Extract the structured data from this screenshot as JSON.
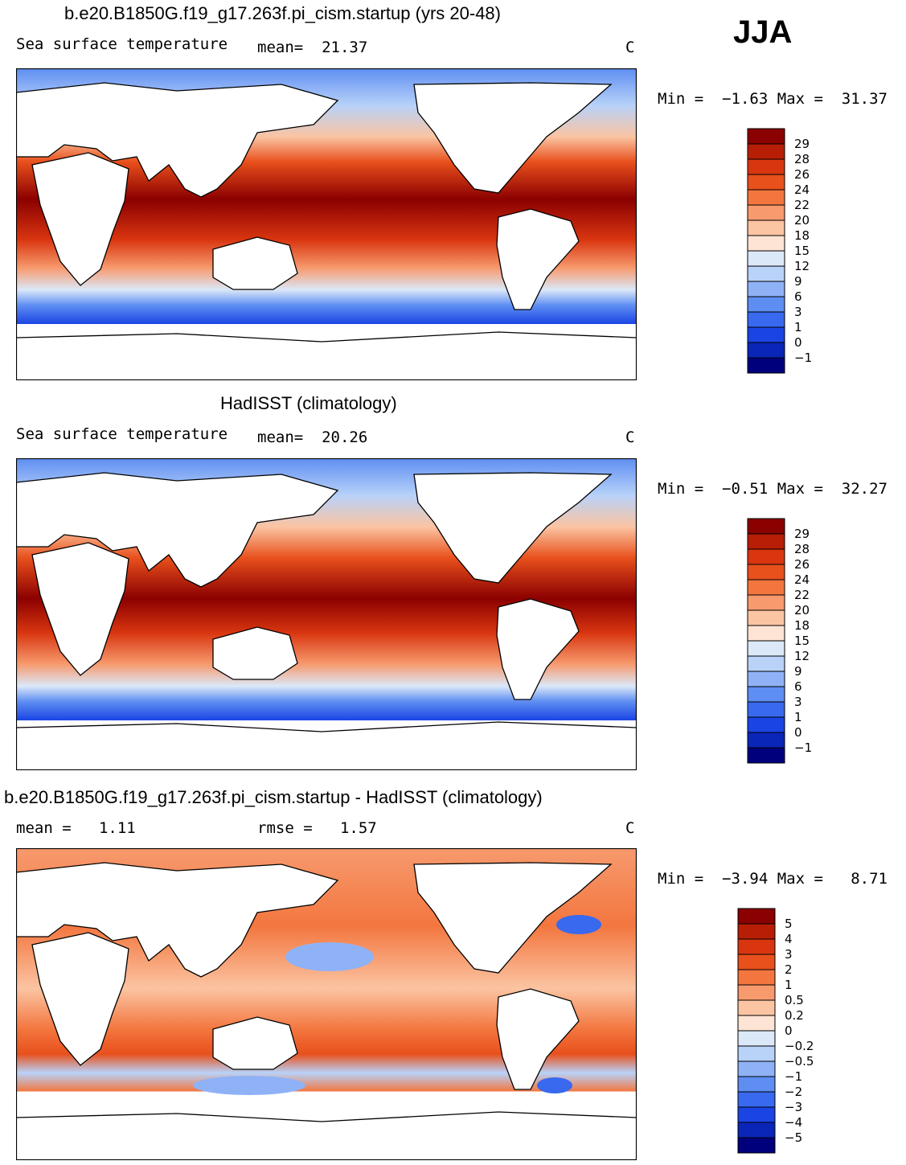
{
  "season": "JJA",
  "panels": [
    {
      "title": "b.e20.B1850G.f19_g17.263f.pi_cism.startup (yrs 20-48)",
      "left_label": "Sea surface temperature",
      "mean_label": "mean=  21.37",
      "units": "C",
      "minmax": "Min =  −1.63 Max =  31.37"
    },
    {
      "title": "HadISST (climatology)",
      "left_label": "Sea surface temperature",
      "mean_label": "mean=  20.26",
      "units": "C",
      "minmax": "Min =  −0.51 Max =  32.27"
    },
    {
      "title": "b.e20.B1850G.f19_g17.263f.pi_cism.startup - HadISST (climatology)",
      "left_label": "mean =   1.11",
      "mean_label": "rmse =   1.57",
      "units": "C",
      "minmax": "Min =  −3.94 Max =   8.71"
    }
  ],
  "chart_data": [
    {
      "type": "heatmap",
      "title": "b.e20.B1850G.f19_g17.263f.pi_cism.startup (yrs 20-48)",
      "variable": "Sea surface temperature",
      "units": "C",
      "mean": 21.37,
      "min": -1.63,
      "max": 31.37,
      "colorbar_levels": [
        "29",
        "28",
        "26",
        "24",
        "22",
        "20",
        "18",
        "15",
        "12",
        "9",
        "6",
        "3",
        "1",
        "0",
        "−1"
      ],
      "colorbar_colors": [
        "#8b0000",
        "#b81e05",
        "#d93610",
        "#e8501c",
        "#f3763f",
        "#f79a6e",
        "#fbc4a2",
        "#fde4d4",
        "#dbe8f8",
        "#b8d2f8",
        "#8fb2f7",
        "#5e8ef2",
        "#3869ee",
        "#1a44e4",
        "#0a26b8",
        "#00007c"
      ]
    },
    {
      "type": "heatmap",
      "title": "HadISST (climatology)",
      "variable": "Sea surface temperature",
      "units": "C",
      "mean": 20.26,
      "min": -0.51,
      "max": 32.27,
      "colorbar_levels": [
        "29",
        "28",
        "26",
        "24",
        "22",
        "20",
        "18",
        "15",
        "12",
        "9",
        "6",
        "3",
        "1",
        "0",
        "−1"
      ],
      "colorbar_colors": [
        "#8b0000",
        "#b81e05",
        "#d93610",
        "#e8501c",
        "#f3763f",
        "#f79a6e",
        "#fbc4a2",
        "#fde4d4",
        "#dbe8f8",
        "#b8d2f8",
        "#8fb2f7",
        "#5e8ef2",
        "#3869ee",
        "#1a44e4",
        "#0a26b8",
        "#00007c"
      ]
    },
    {
      "type": "heatmap",
      "title": "b.e20.B1850G.f19_g17.263f.pi_cism.startup - HadISST (climatology)",
      "units": "C",
      "mean": 1.11,
      "rmse": 1.57,
      "min": -3.94,
      "max": 8.71,
      "colorbar_levels": [
        "5",
        "4",
        "3",
        "2",
        "1",
        "0.5",
        "0.2",
        "0",
        "−0.2",
        "−0.5",
        "−1",
        "−2",
        "−3",
        "−4",
        "−5"
      ],
      "colorbar_colors": [
        "#8b0000",
        "#b81e05",
        "#d93610",
        "#e8501c",
        "#f3763f",
        "#f79a6e",
        "#fbc4a2",
        "#fde4d4",
        "#dbe8f8",
        "#b8d2f8",
        "#8fb2f7",
        "#5e8ef2",
        "#3869ee",
        "#1a44e4",
        "#0a26b8",
        "#00007c"
      ]
    }
  ]
}
